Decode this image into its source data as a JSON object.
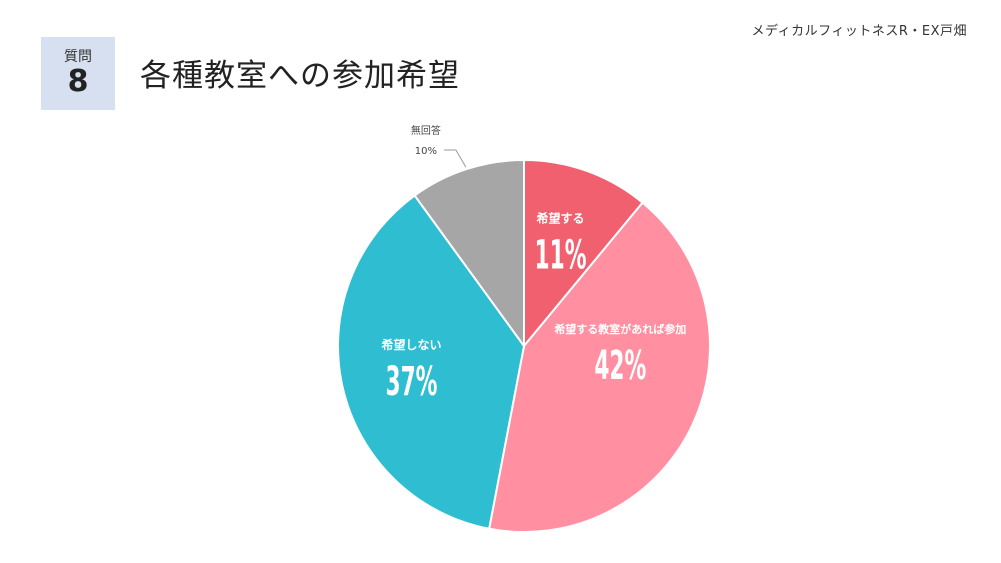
{
  "header": {
    "organization": "メディカルフィットネスR・EX戸畑",
    "question_label": "質問",
    "question_number": "8",
    "title": "各種教室への参加希望"
  },
  "chart_data": {
    "type": "pie",
    "title": "各種教室への参加希望",
    "start_angle_deg": 0,
    "direction": "clockwise",
    "slices": [
      {
        "label": "希望する",
        "value": 11,
        "value_label": "11%",
        "color": "#f0606e"
      },
      {
        "label": "希望する教室があれば参加",
        "value": 42,
        "value_label": "42%",
        "color": "#ff8fa1"
      },
      {
        "label": "希望しない",
        "value": 37,
        "value_label": "37%",
        "color": "#2ebdd1"
      },
      {
        "label": "無回答",
        "value": 10,
        "value_label": "10%",
        "color": "#a6a6a6"
      }
    ]
  }
}
